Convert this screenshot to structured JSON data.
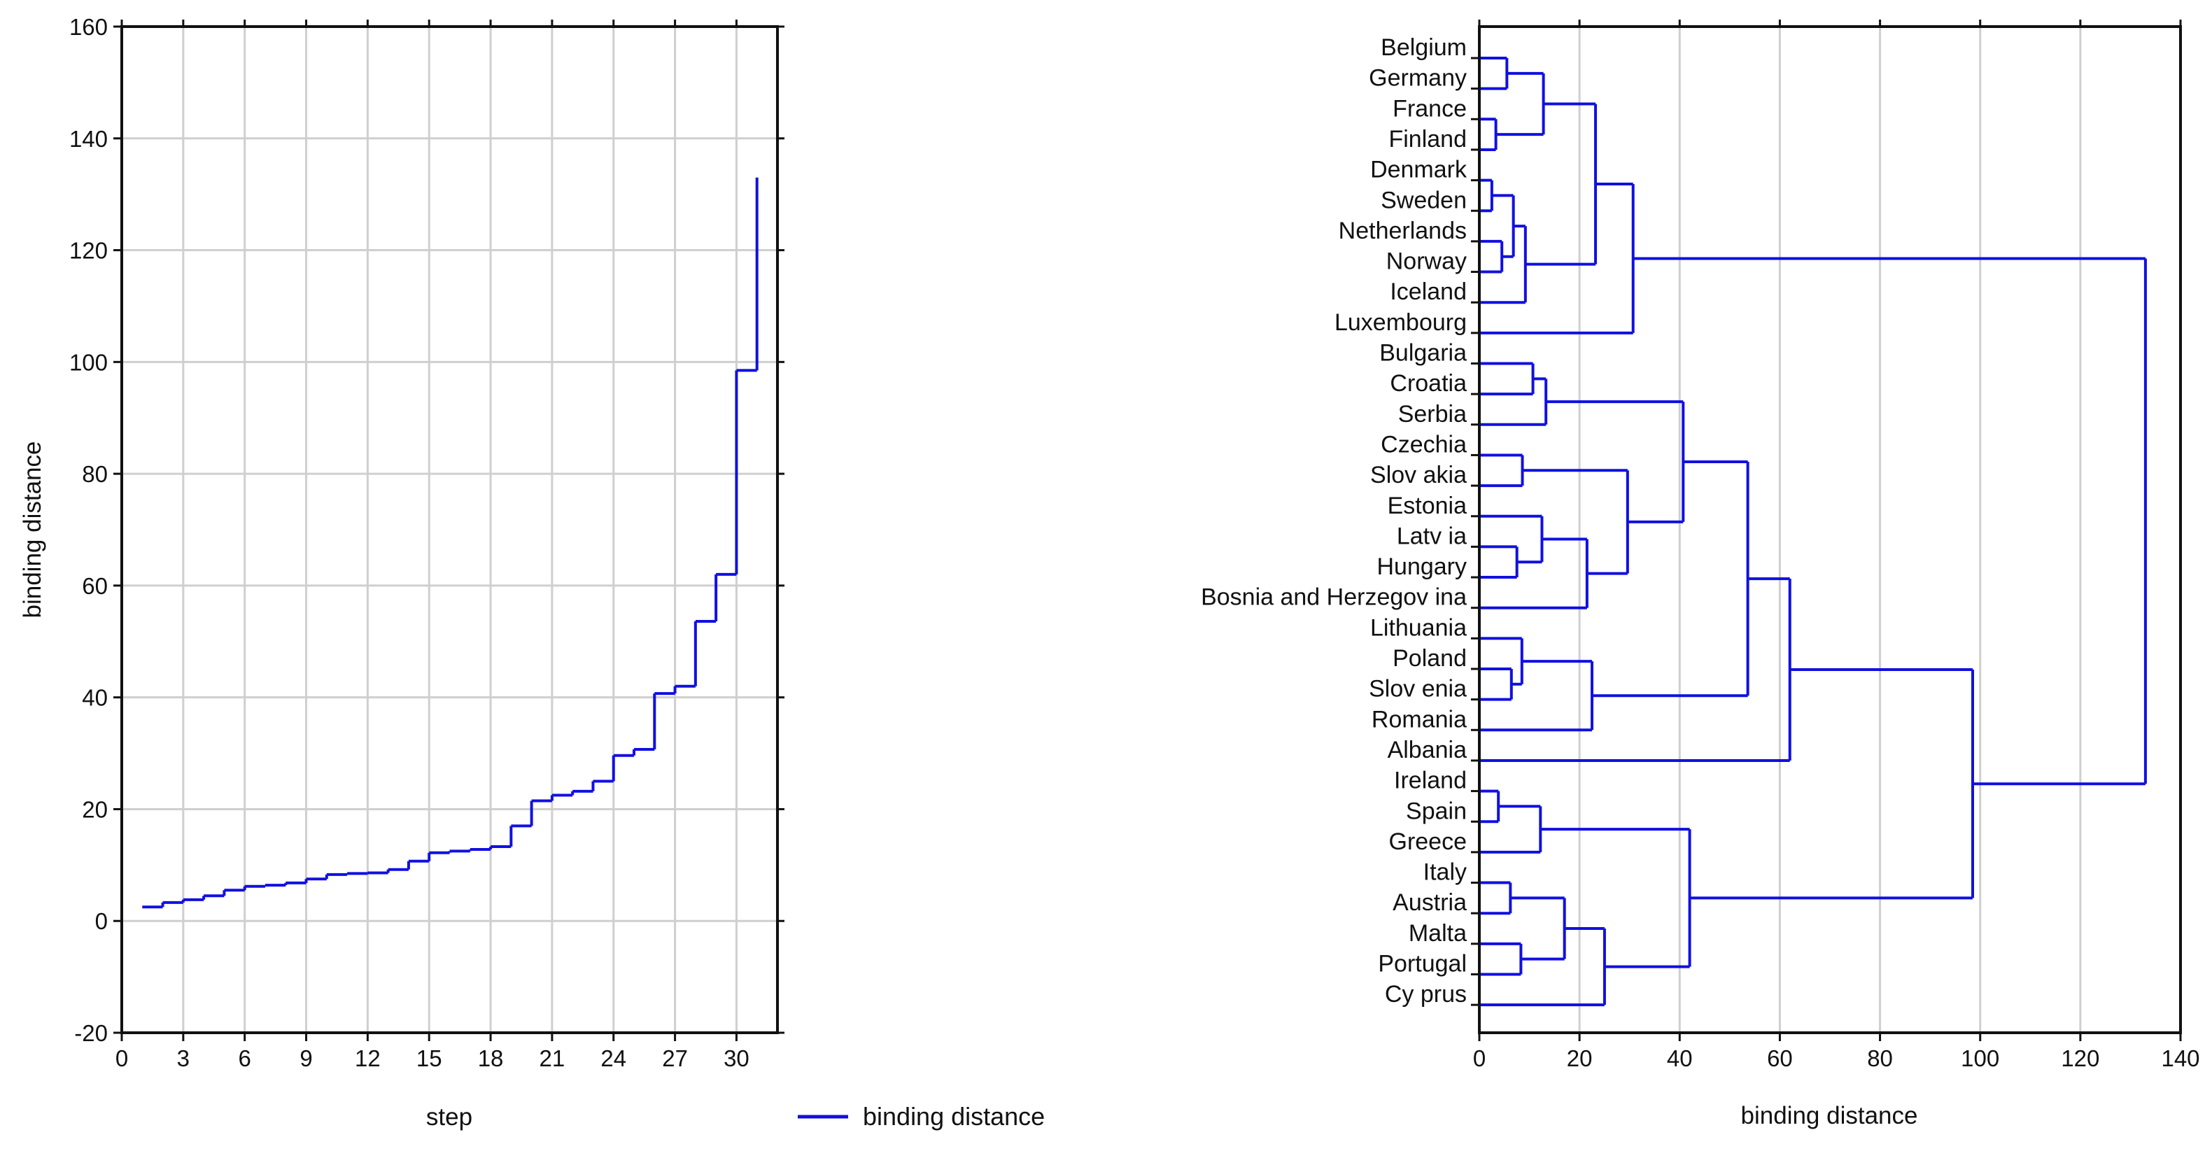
{
  "colors": {
    "series": "#1010e0",
    "grid": "#cfcfcf",
    "axis": "#111111"
  },
  "chart_data": [
    {
      "type": "line",
      "subtype": "step",
      "title": "",
      "xlabel": "step",
      "ylabel": "binding distance",
      "xlim": [
        0,
        32
      ],
      "ylim": [
        -20,
        160
      ],
      "xticks": [
        0,
        3,
        6,
        9,
        12,
        15,
        18,
        21,
        24,
        27,
        30
      ],
      "yticks": [
        -20,
        0,
        20,
        40,
        60,
        80,
        100,
        120,
        140,
        160
      ],
      "grid": true,
      "legend": {
        "position": "bottom",
        "label": "binding distance"
      },
      "series": [
        {
          "name": "binding distance",
          "x": [
            1,
            2,
            3,
            4,
            5,
            6,
            7,
            8,
            9,
            10,
            11,
            12,
            13,
            14,
            15,
            16,
            17,
            18,
            19,
            20,
            21,
            22,
            23,
            24,
            25,
            26,
            27,
            28,
            29,
            30,
            31
          ],
          "values": [
            2.5,
            3.3,
            3.8,
            4.5,
            5.5,
            6.2,
            6.4,
            6.8,
            7.5,
            8.3,
            8.5,
            8.6,
            9.2,
            10.7,
            12.2,
            12.5,
            12.8,
            13.3,
            17.0,
            21.5,
            22.5,
            23.2,
            25.0,
            29.6,
            30.7,
            40.7,
            42.0,
            53.6,
            62.0,
            98.5,
            133.0
          ]
        }
      ]
    },
    {
      "type": "dendrogram",
      "title": "",
      "xlabel": "binding distance",
      "ylabel": "",
      "xlim": [
        0,
        140
      ],
      "xticks": [
        0,
        20,
        40,
        60,
        80,
        100,
        120,
        140
      ],
      "grid": true,
      "leaves": [
        "Belgium",
        "Germany",
        "France",
        "Finland",
        "Denmark",
        "Sweden",
        "Netherlands",
        "Norway",
        "Iceland",
        "Luxembourg",
        "Bulgaria",
        "Croatia",
        "Serbia",
        "Czechia",
        "Slov akia",
        "Estonia",
        "Latv ia",
        "Hungary",
        "Bosnia and Herzegov ina",
        "Lithuania",
        "Poland",
        "Slov enia",
        "Romania",
        "Albania",
        "Ireland",
        "Spain",
        "Greece",
        "Italy",
        "Austria",
        "Malta",
        "Portugal",
        "Cy prus"
      ],
      "merges": [
        {
          "a": "Denmark",
          "b": "Sweden",
          "height": 2.5
        },
        {
          "a": "France",
          "b": "Finland",
          "height": 3.3
        },
        {
          "a": "Ireland",
          "b": "Spain",
          "height": 3.8
        },
        {
          "a": "Netherlands",
          "b": "Norway",
          "height": 4.5
        },
        {
          "a": "Belgium",
          "b": "Germany",
          "height": 5.5
        },
        {
          "a": "Italy",
          "b": "Austria",
          "height": 6.2
        },
        {
          "a": "Poland",
          "b": "Slov enia",
          "height": 6.4
        },
        {
          "a": "Denmark+Sweden",
          "b": "Netherlands+Norway",
          "height": 6.8
        },
        {
          "a": "Latv ia",
          "b": "Hungary",
          "height": 7.5
        },
        {
          "a": "Malta",
          "b": "Portugal",
          "height": 8.3
        },
        {
          "a": "Lithuania",
          "b": "Poland+Slov enia",
          "height": 8.5
        },
        {
          "a": "Czechia",
          "b": "Slov akia",
          "height": 8.6
        },
        {
          "a": "Denmark..Norway",
          "b": "Iceland",
          "height": 9.2
        },
        {
          "a": "Bulgaria",
          "b": "Croatia",
          "height": 10.7
        },
        {
          "a": "Ireland+Spain",
          "b": "Greece",
          "height": 12.2
        },
        {
          "a": "Estonia",
          "b": "Latv ia+Hungary",
          "height": 12.5
        },
        {
          "a": "Belgium+Germany",
          "b": "France+Finland",
          "height": 12.8
        },
        {
          "a": "Bulgaria+Croatia",
          "b": "Serbia",
          "height": 13.3
        },
        {
          "a": "Italy+Austria",
          "b": "Malta+Portugal",
          "height": 17.0
        },
        {
          "a": "Estonia..Hungary",
          "b": "Bosnia and Herzegov ina",
          "height": 21.5
        },
        {
          "a": "Lithuania..Slov enia",
          "b": "Romania",
          "height": 22.5
        },
        {
          "a": "Belgium..Finland",
          "b": "Denmark..Iceland",
          "height": 23.2
        },
        {
          "a": "Italy..Portugal",
          "b": "Cy prus",
          "height": 25.0
        },
        {
          "a": "Czechia+Slov akia",
          "b": "Estonia..Bosnia and Herzegov ina",
          "height": 29.6
        },
        {
          "a": "Belgium..Iceland",
          "b": "Luxembourg",
          "height": 30.7
        },
        {
          "a": "Bulgaria..Serbia",
          "b": "Czechia..Bosnia and Herzegov ina",
          "height": 40.7
        },
        {
          "a": "Ireland..Greece",
          "b": "Italy..Cy prus",
          "height": 42.0
        },
        {
          "a": "Bulgaria..Bosnia and Herzegov ina",
          "b": "Lithuania..Romania",
          "height": 53.6
        },
        {
          "a": "Bulgaria..Romania",
          "b": "Albania",
          "height": 62.0
        },
        {
          "a": "Bulgaria..Albania",
          "b": "Ireland..Cy prus",
          "height": 98.5
        },
        {
          "a": "Belgium..Luxembourg",
          "b": "Bulgaria..Cy prus",
          "height": 133.0
        }
      ]
    }
  ]
}
